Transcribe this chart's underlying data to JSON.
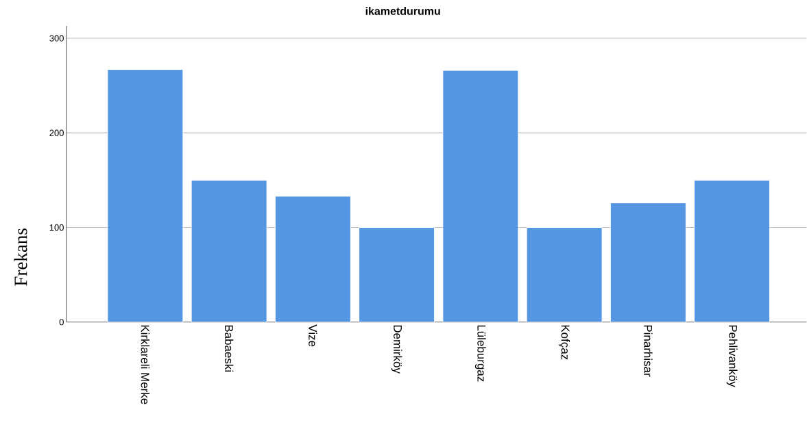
{
  "chart_data": {
    "type": "bar",
    "title": "ikametdurumu",
    "ylabel": "Frekans",
    "categories": [
      "Kirklareli Merke",
      "Babaeski",
      "Vize",
      "Demirköy",
      "Lüleburgaz",
      "Kofçaz",
      "Pinarhisar",
      "Pehlivanköy"
    ],
    "values": [
      267,
      150,
      133,
      100,
      266,
      100,
      126,
      150
    ],
    "color": "#5596e3",
    "ylim": [
      0,
      313
    ],
    "yticks": [
      0,
      100,
      200,
      300
    ],
    "grid": "y"
  }
}
